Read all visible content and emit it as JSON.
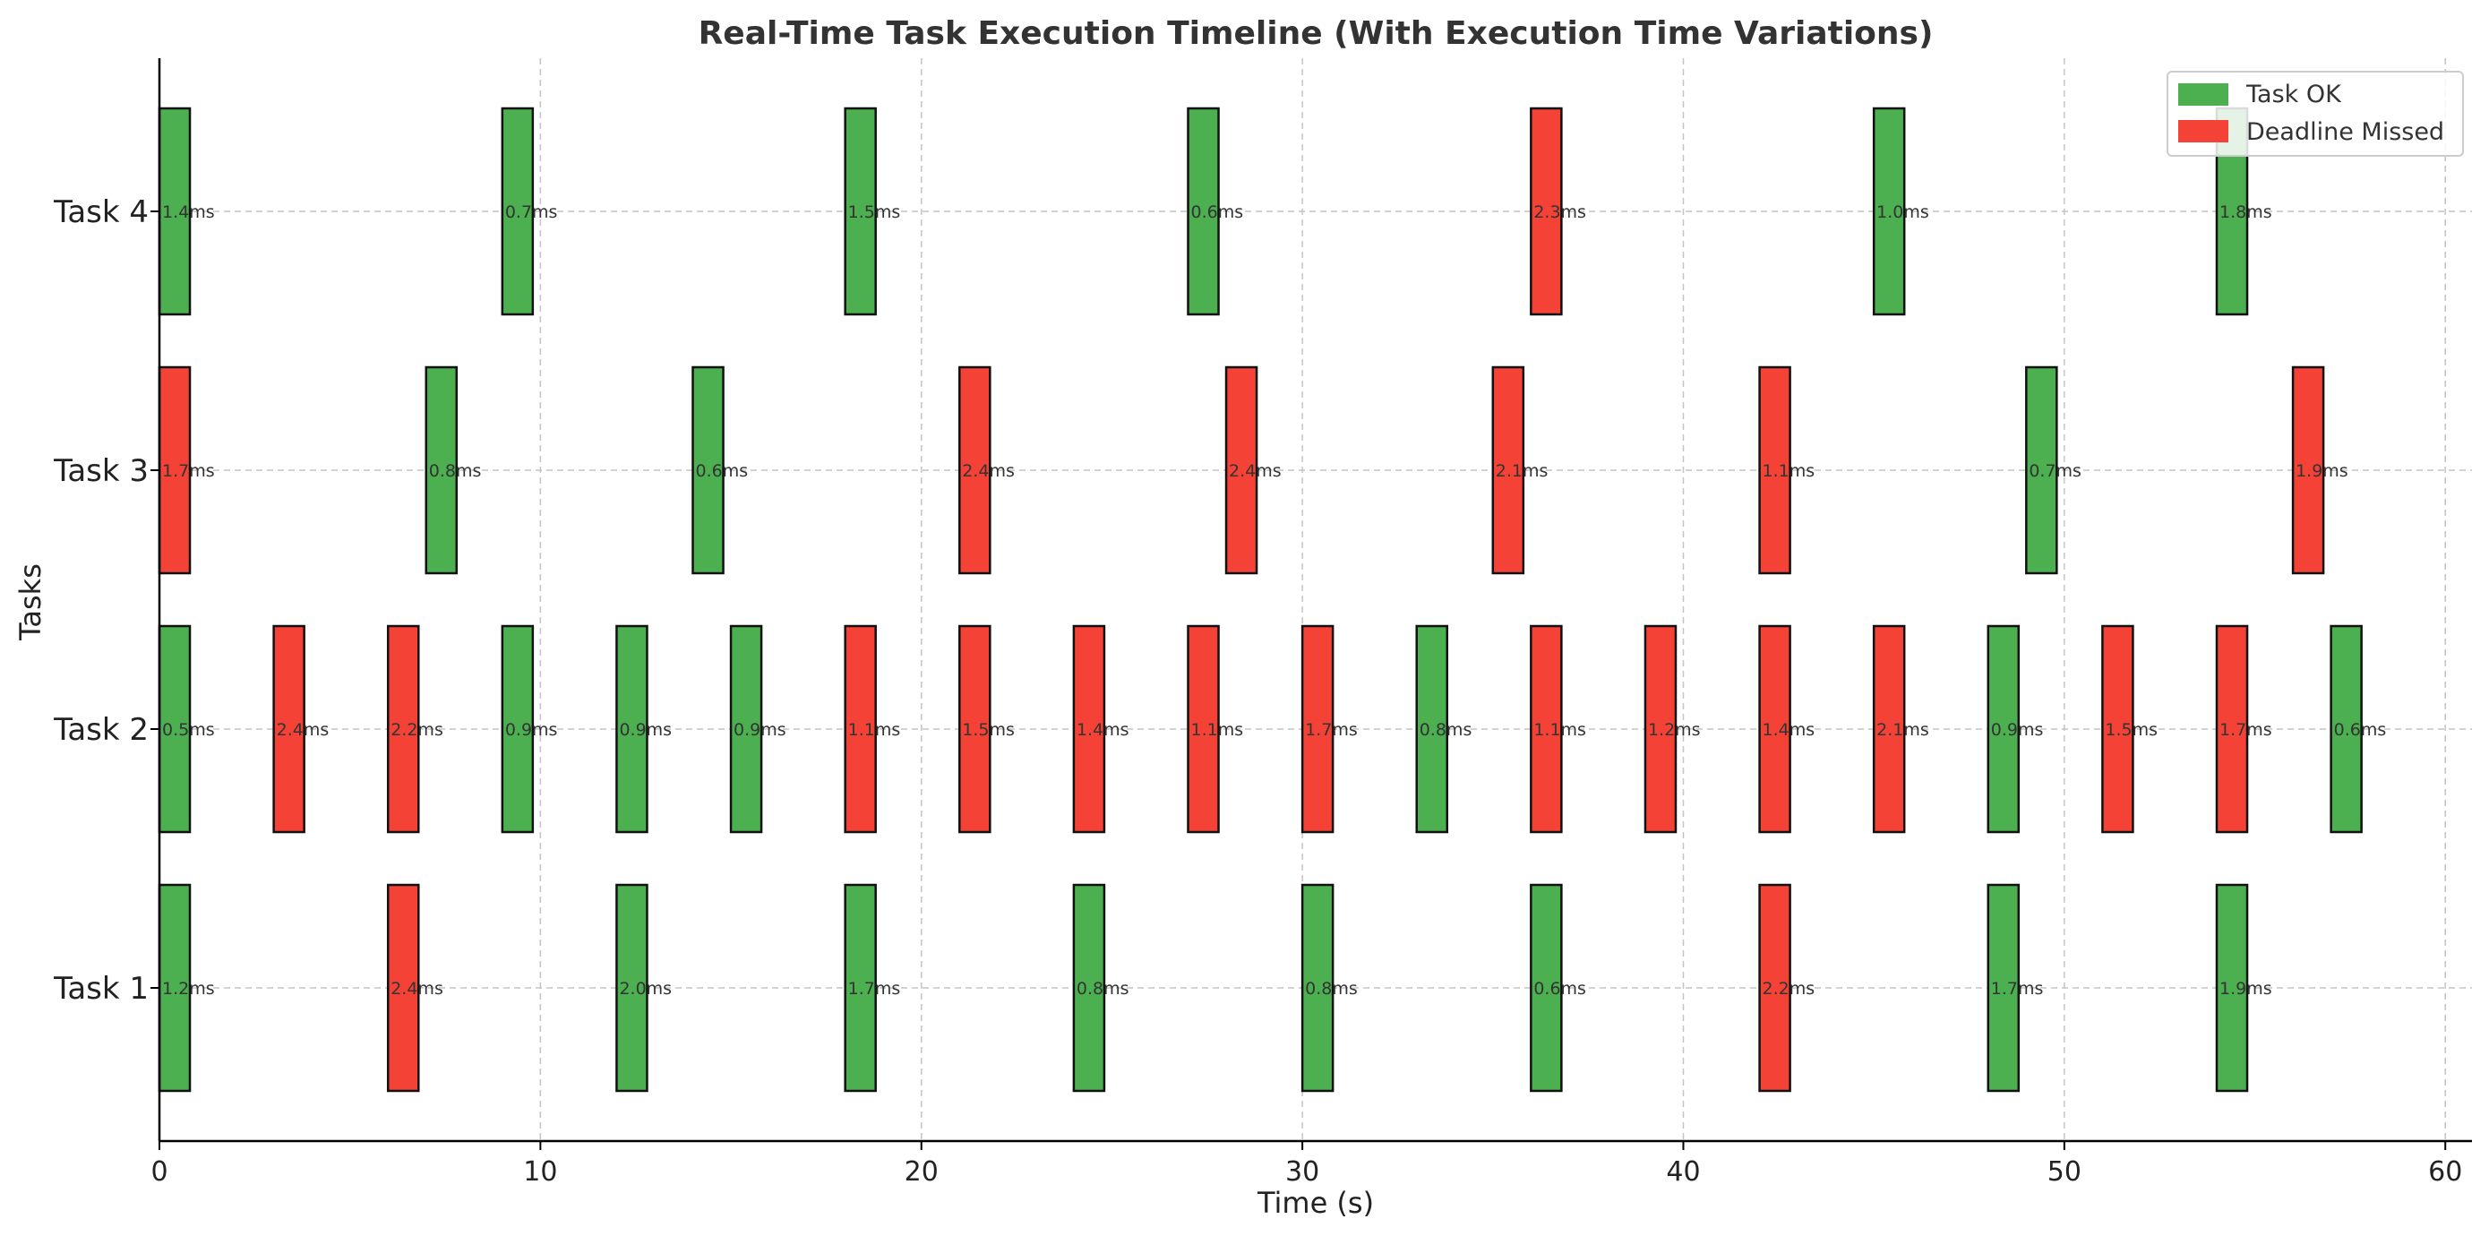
{
  "chart_data": {
    "type": "bar",
    "orientation": "horizontal-timeline",
    "title": "Real-Time Task Execution Timeline (With Execution Time Variations)",
    "xlabel": "Time (s)",
    "ylabel": "Tasks",
    "xlim": [
      0,
      60.7
    ],
    "x_ticks": [
      0,
      10,
      20,
      30,
      40,
      50,
      60
    ],
    "categories": [
      "Task 1",
      "Task 2",
      "Task 3",
      "Task 4"
    ],
    "grid": true,
    "legend": {
      "placement": "top-right",
      "entries": [
        {
          "label": "Task OK",
          "status": "ok"
        },
        {
          "label": "Deadline Missed",
          "status": "missed"
        }
      ]
    },
    "colors": {
      "ok": "#4caf50",
      "missed": "#f44336"
    },
    "bar_duration_s": 0.8,
    "series": [
      {
        "task": "Task 1",
        "events": [
          {
            "start": 0,
            "label": "1.2ms",
            "status": "ok"
          },
          {
            "start": 6,
            "label": "2.4ms",
            "status": "missed"
          },
          {
            "start": 12,
            "label": "2.0ms",
            "status": "ok"
          },
          {
            "start": 18,
            "label": "1.7ms",
            "status": "ok"
          },
          {
            "start": 24,
            "label": "0.8ms",
            "status": "ok"
          },
          {
            "start": 30,
            "label": "0.8ms",
            "status": "ok"
          },
          {
            "start": 36,
            "label": "0.6ms",
            "status": "ok"
          },
          {
            "start": 42,
            "label": "2.2ms",
            "status": "missed"
          },
          {
            "start": 48,
            "label": "1.7ms",
            "status": "ok"
          },
          {
            "start": 54,
            "label": "1.9ms",
            "status": "ok"
          }
        ]
      },
      {
        "task": "Task 2",
        "events": [
          {
            "start": 0,
            "label": "0.5ms",
            "status": "ok"
          },
          {
            "start": 3,
            "label": "2.4ms",
            "status": "missed"
          },
          {
            "start": 6,
            "label": "2.2ms",
            "status": "missed"
          },
          {
            "start": 9,
            "label": "0.9ms",
            "status": "ok"
          },
          {
            "start": 12,
            "label": "0.9ms",
            "status": "ok"
          },
          {
            "start": 15,
            "label": "0.9ms",
            "status": "ok"
          },
          {
            "start": 18,
            "label": "1.1ms",
            "status": "missed"
          },
          {
            "start": 21,
            "label": "1.5ms",
            "status": "missed"
          },
          {
            "start": 24,
            "label": "1.4ms",
            "status": "missed"
          },
          {
            "start": 27,
            "label": "1.1ms",
            "status": "missed"
          },
          {
            "start": 30,
            "label": "1.7ms",
            "status": "missed"
          },
          {
            "start": 33,
            "label": "0.8ms",
            "status": "ok"
          },
          {
            "start": 36,
            "label": "1.1ms",
            "status": "missed"
          },
          {
            "start": 39,
            "label": "1.2ms",
            "status": "missed"
          },
          {
            "start": 42,
            "label": "1.4ms",
            "status": "missed"
          },
          {
            "start": 45,
            "label": "2.1ms",
            "status": "missed"
          },
          {
            "start": 48,
            "label": "0.9ms",
            "status": "ok"
          },
          {
            "start": 51,
            "label": "1.5ms",
            "status": "missed"
          },
          {
            "start": 54,
            "label": "1.7ms",
            "status": "missed"
          },
          {
            "start": 57,
            "label": "0.6ms",
            "status": "ok"
          }
        ]
      },
      {
        "task": "Task 3",
        "events": [
          {
            "start": 0,
            "label": "1.7ms",
            "status": "missed"
          },
          {
            "start": 7,
            "label": "0.8ms",
            "status": "ok"
          },
          {
            "start": 14,
            "label": "0.6ms",
            "status": "ok"
          },
          {
            "start": 21,
            "label": "2.4ms",
            "status": "missed"
          },
          {
            "start": 28,
            "label": "2.4ms",
            "status": "missed"
          },
          {
            "start": 35,
            "label": "2.1ms",
            "status": "missed"
          },
          {
            "start": 42,
            "label": "1.1ms",
            "status": "missed"
          },
          {
            "start": 49,
            "label": "0.7ms",
            "status": "ok"
          },
          {
            "start": 56,
            "label": "1.9ms",
            "status": "missed"
          }
        ]
      },
      {
        "task": "Task 4",
        "events": [
          {
            "start": 0,
            "label": "1.4ms",
            "status": "ok"
          },
          {
            "start": 9,
            "label": "0.7ms",
            "status": "ok"
          },
          {
            "start": 18,
            "label": "1.5ms",
            "status": "ok"
          },
          {
            "start": 27,
            "label": "0.6ms",
            "status": "ok"
          },
          {
            "start": 36,
            "label": "2.3ms",
            "status": "missed"
          },
          {
            "start": 45,
            "label": "1.0ms",
            "status": "ok"
          },
          {
            "start": 54,
            "label": "1.8ms",
            "status": "ok"
          }
        ]
      }
    ]
  }
}
